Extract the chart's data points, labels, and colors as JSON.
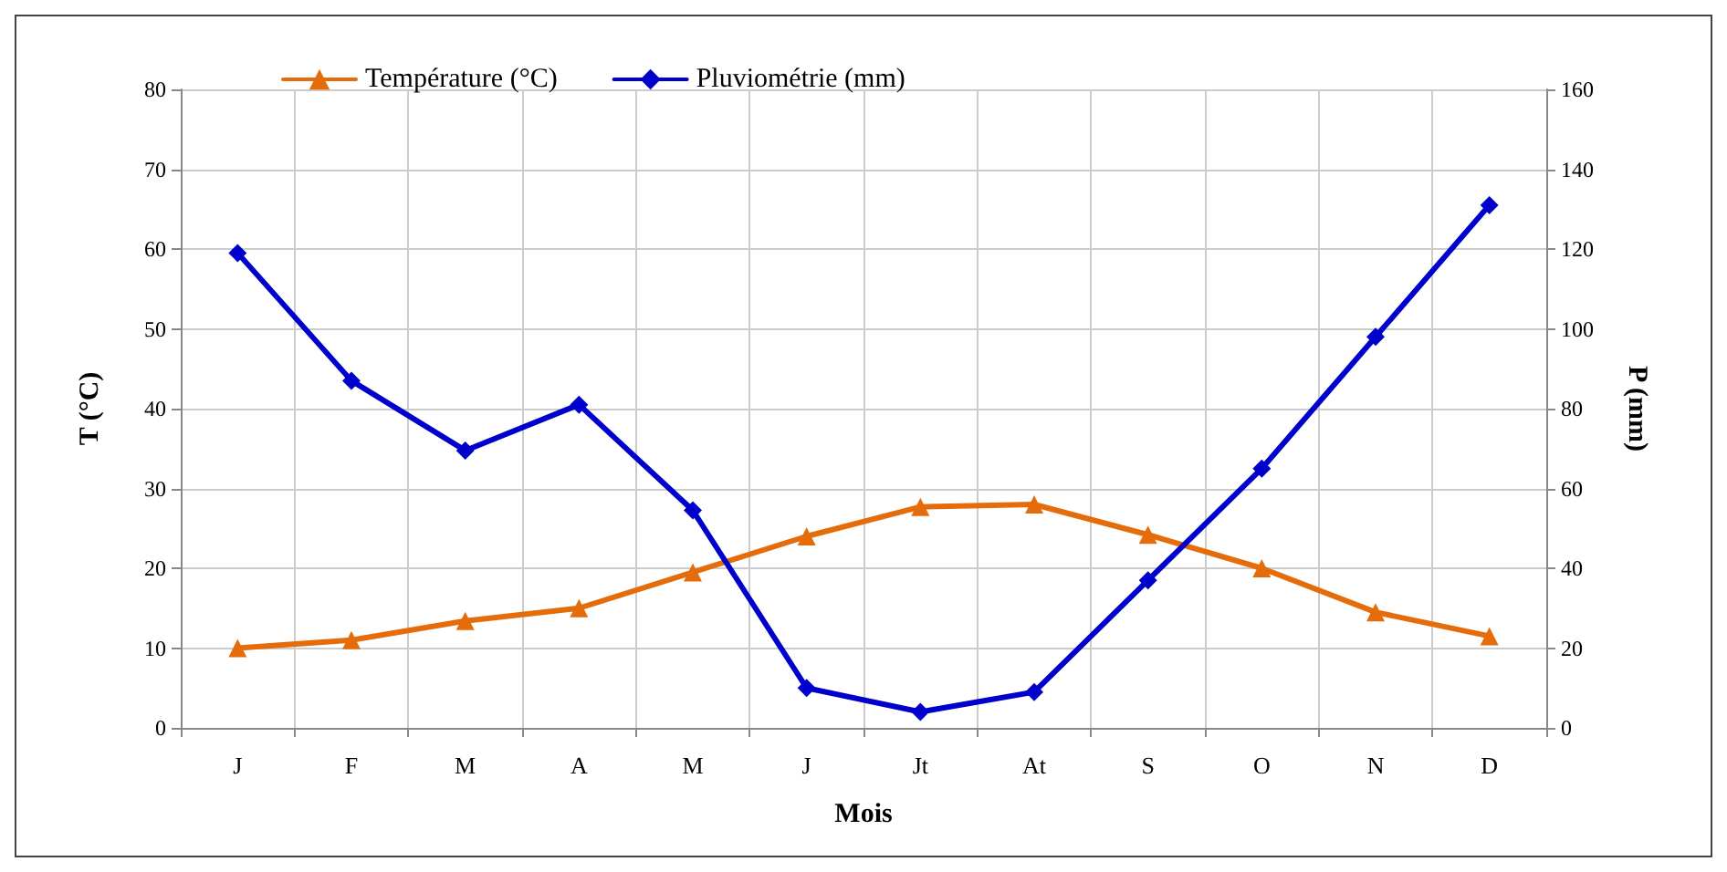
{
  "chart_data": {
    "type": "line",
    "xlabel": "Mois",
    "ylabel": "T (°C)",
    "y2label": "P (mm)",
    "categories": [
      "J",
      "F",
      "M",
      "A",
      "M",
      "J",
      "Jt",
      "At",
      "S",
      "O",
      "N",
      "D"
    ],
    "series": [
      {
        "name": "Température (°C)",
        "color": "#e46c0a",
        "marker": "triangle",
        "values": [
          10,
          11,
          13.4,
          15,
          19.5,
          24,
          27.7,
          28,
          24.2,
          20,
          14.5,
          11.5
        ]
      },
      {
        "name": "Pluviométrie (mm)",
        "color": "#0000cc",
        "marker": "diamond",
        "axis": "y2",
        "values": [
          119,
          87,
          69.5,
          81,
          54.5,
          10,
          4,
          9,
          37,
          65,
          98,
          131
        ]
      }
    ],
    "ylim": [
      0,
      80
    ],
    "yticks": [
      0,
      10,
      20,
      30,
      40,
      50,
      60,
      70,
      80
    ],
    "y2lim": [
      0,
      160
    ],
    "y2ticks": [
      0,
      20,
      40,
      60,
      80,
      100,
      120,
      140,
      160
    ],
    "grid": true,
    "legend": "top left"
  }
}
